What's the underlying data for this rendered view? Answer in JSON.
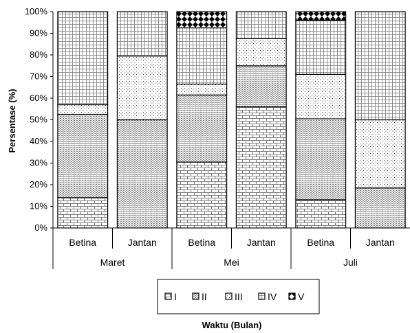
{
  "chart_data": {
    "type": "bar",
    "stacked": true,
    "percent_stacked": true,
    "ylabel": "Persentase (%)",
    "xlabel": "Waktu (Bulan)",
    "ylim": [
      0,
      100
    ],
    "y_ticks": [
      "0%",
      "10%",
      "20%",
      "30%",
      "40%",
      "50%",
      "60%",
      "70%",
      "80%",
      "90%",
      "100%"
    ],
    "grid": false,
    "legend_position": "bottom",
    "groups": [
      {
        "label": "Maret",
        "categories": [
          "Betina",
          "Jantan"
        ]
      },
      {
        "label": "Mei",
        "categories": [
          "Betina",
          "Jantan"
        ]
      },
      {
        "label": "Juli",
        "categories": [
          "Betina",
          "Jantan"
        ]
      }
    ],
    "categories": [
      "Betina",
      "Jantan",
      "Betina",
      "Jantan",
      "Betina",
      "Jantan"
    ],
    "series": [
      {
        "name": "I",
        "pattern": "brick",
        "values": [
          14,
          0,
          30.5,
          56,
          13,
          0
        ]
      },
      {
        "name": "II",
        "pattern": "scales",
        "values": [
          38.5,
          50,
          31,
          19,
          37.5,
          18.5
        ]
      },
      {
        "name": "III",
        "pattern": "dots",
        "values": [
          4.5,
          29.5,
          5,
          12.5,
          20.5,
          31.5
        ]
      },
      {
        "name": "IV",
        "pattern": "grid",
        "values": [
          43,
          20.5,
          26,
          12.5,
          25,
          50
        ]
      },
      {
        "name": "V",
        "pattern": "checker",
        "values": [
          0,
          0,
          7.5,
          0,
          4,
          0
        ]
      }
    ]
  }
}
